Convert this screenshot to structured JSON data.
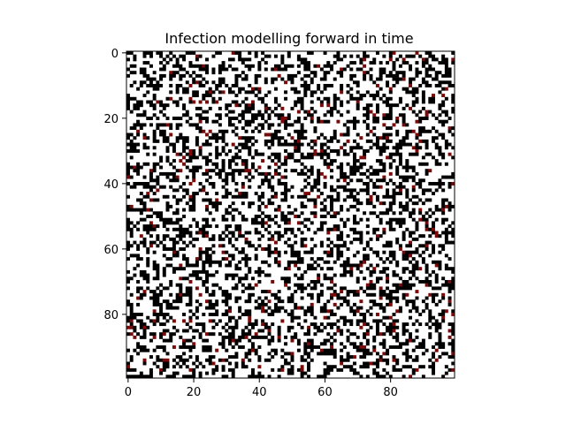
{
  "chart_data": {
    "type": "heatmap",
    "title": "Infection modelling forward in time",
    "xlabel": "",
    "ylabel": "",
    "grid": false,
    "rows": 100,
    "cols": 100,
    "xlim": [
      -0.5,
      99.5
    ],
    "ylim": [
      99.5,
      -0.5
    ],
    "x_ticks": [
      0,
      20,
      40,
      60,
      80
    ],
    "y_ticks": [
      0,
      20,
      40,
      60,
      80
    ],
    "x_tick_labels": [
      "0",
      "20",
      "40",
      "60",
      "80"
    ],
    "y_tick_labels": [
      "0",
      "20",
      "40",
      "60",
      "80"
    ],
    "value_colors": {
      "0": "#ffffff",
      "1": "#000000",
      "2": "#7a0a0a"
    },
    "cell_fraction_by_value": {
      "0": 0.63,
      "1": 0.34,
      "2": 0.03
    },
    "pattern_seed": 20240317
  }
}
